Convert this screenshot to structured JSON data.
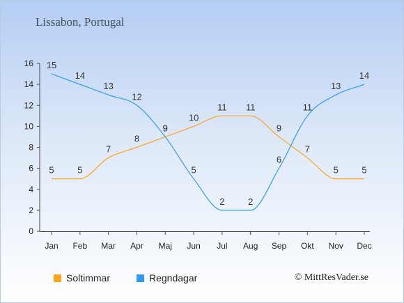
{
  "header": {
    "title": "Lissabon, Portugal"
  },
  "footer": {
    "copyright": "© MittResVader.se"
  },
  "chart_data": {
    "type": "line",
    "categories": [
      "Jan",
      "Feb",
      "Mar",
      "Apr",
      "Maj",
      "Jun",
      "Jul",
      "Aug",
      "Sep",
      "Okt",
      "Nov",
      "Dec"
    ],
    "ylim": [
      0,
      16
    ],
    "yticks": [
      0,
      2,
      4,
      6,
      8,
      10,
      12,
      14,
      16
    ],
    "grid": false,
    "legend_position": "bottom-left",
    "series": [
      {
        "name": "Soltimmar",
        "color": "#ffa31a",
        "values": [
          5,
          5,
          7,
          8,
          9,
          10,
          11,
          11,
          9,
          7,
          5,
          5
        ]
      },
      {
        "name": "Regndagar",
        "color": "#2e9bf0",
        "values": [
          15,
          14,
          13,
          12,
          9,
          5,
          2,
          2,
          6,
          11,
          13,
          14
        ]
      }
    ]
  }
}
